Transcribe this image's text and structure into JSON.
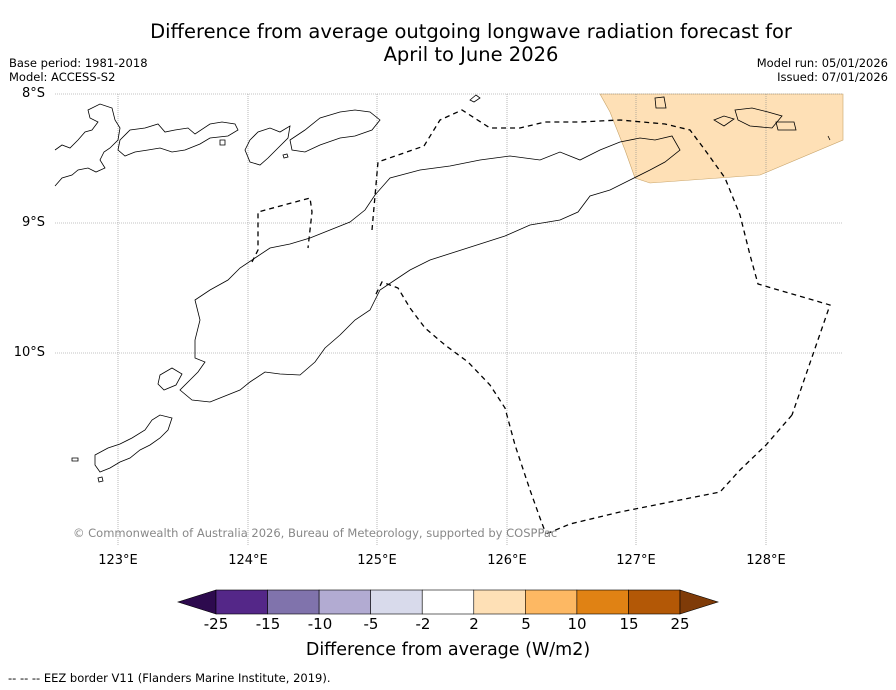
{
  "title_line1": "Difference from average outgoing longwave radiation forecast for",
  "title_line2": "April to June 2026",
  "base_period": "Base period: 1981-2018",
  "model": "Model: ACCESS-S2",
  "model_run": "Model run: 05/01/2026",
  "issued": "Issued: 07/01/2026",
  "copyright": "© Commonwealth of Australia 2026, Bureau of Meteorology, supported by COSPPac",
  "lat_labels": [
    "8°S",
    "9°S",
    "10°S"
  ],
  "lon_labels": [
    "123°E",
    "124°E",
    "125°E",
    "126°E",
    "127°E",
    "128°E"
  ],
  "colorbar": {
    "ticks": [
      "-25",
      "-15",
      "-10",
      "-5",
      "-2",
      "2",
      "5",
      "10",
      "15",
      "25"
    ],
    "colors": [
      "#2d0a4e",
      "#542788",
      "#8073ac",
      "#b2abd2",
      "#d8daeb",
      "#ffffff",
      "#fee0b6",
      "#fdb863",
      "#e08214",
      "#b35806",
      "#7f3b08"
    ],
    "title": "Difference from average (W/m2)"
  },
  "anomaly_fill_color": "#fee0b6",
  "footnote": "--  --  -- EEZ border V11 (Flanders Marine Institute, 2019)."
}
